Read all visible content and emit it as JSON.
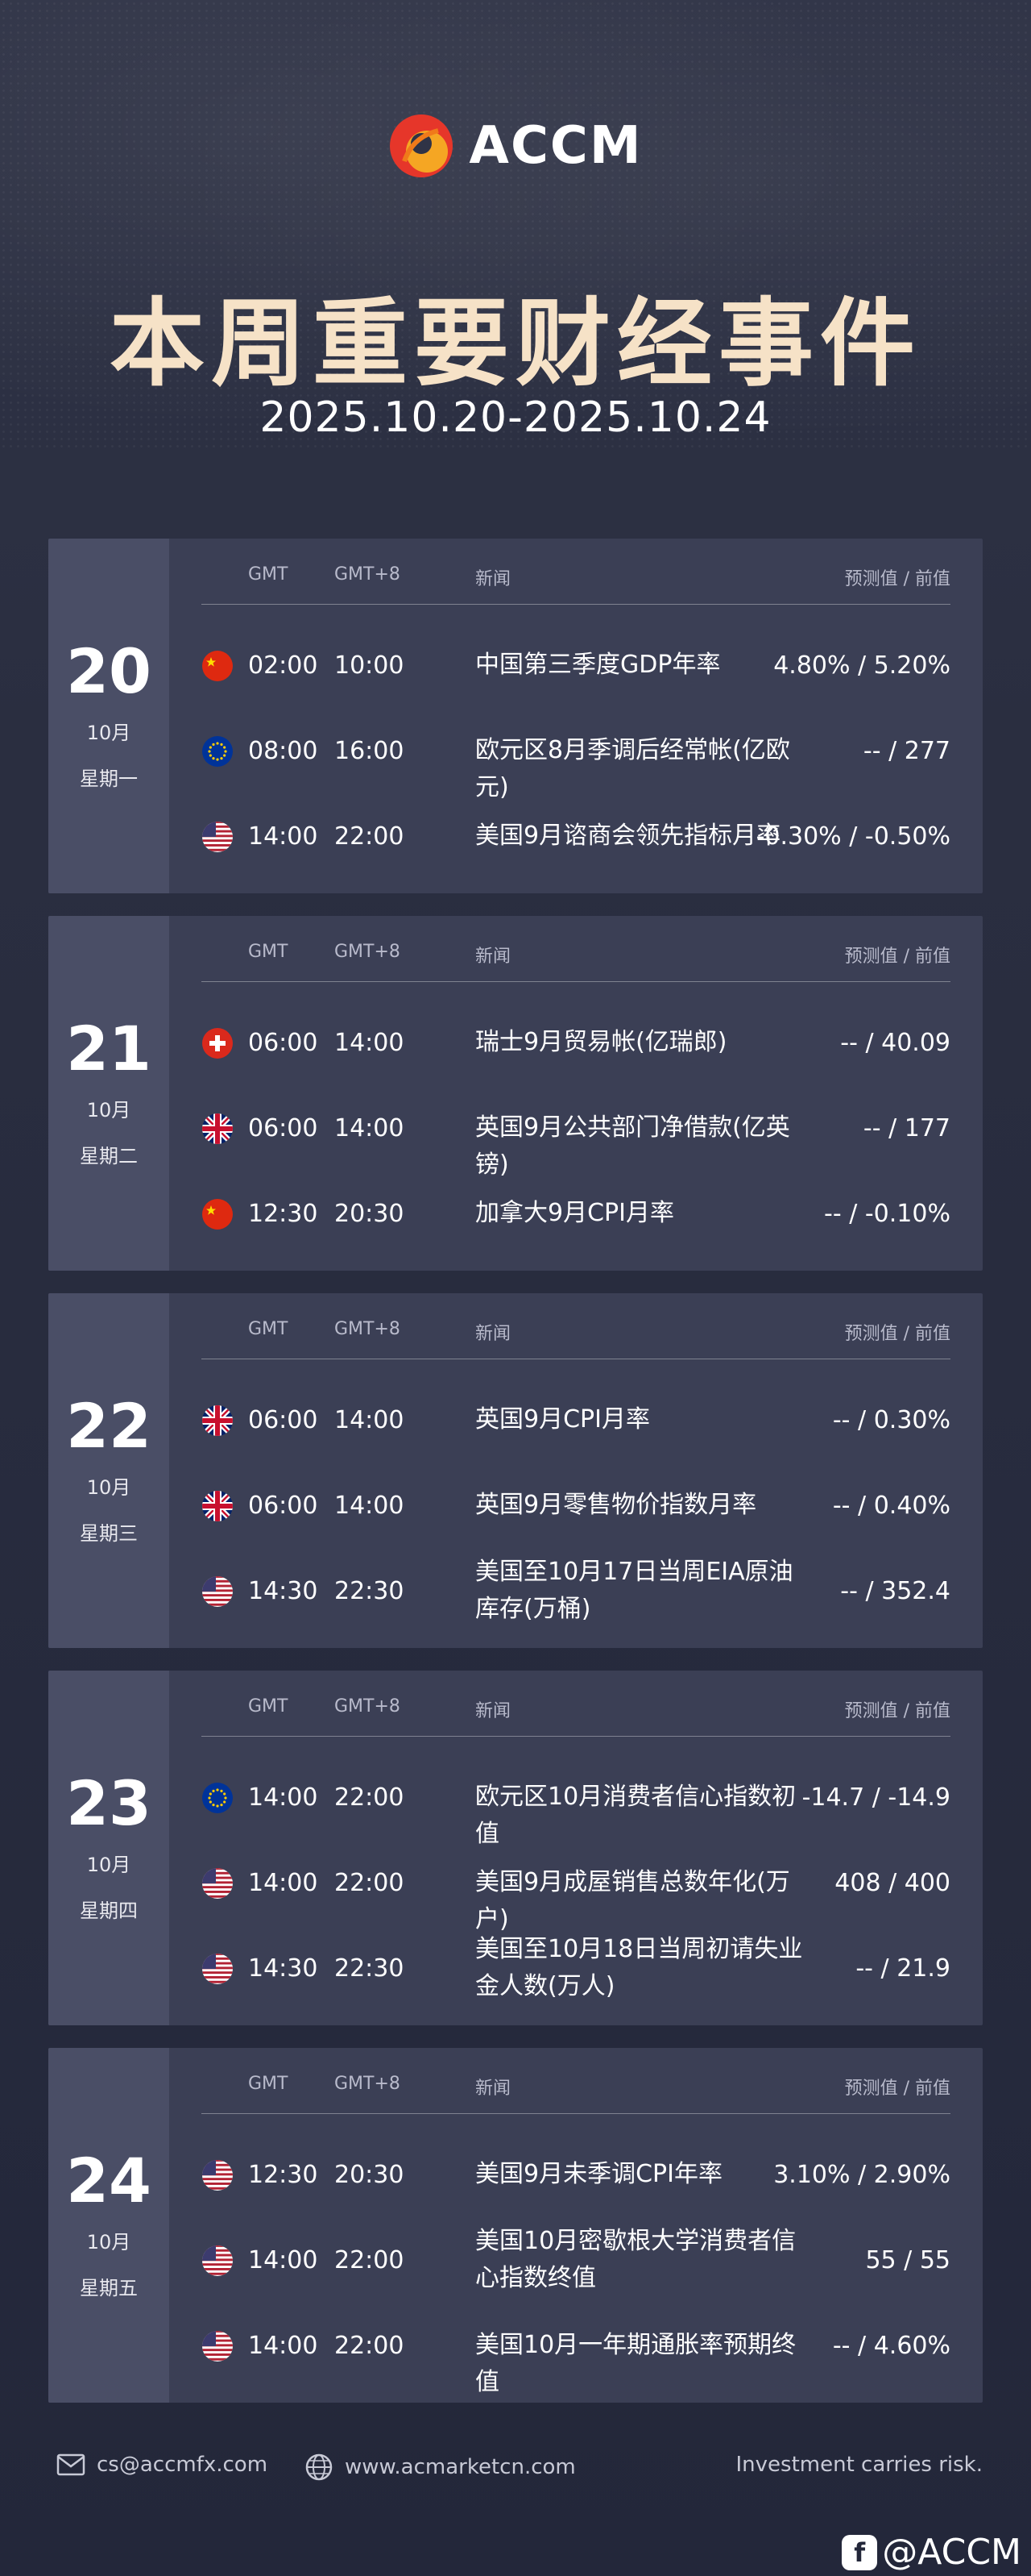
{
  "brand": {
    "name": "ACCM"
  },
  "title": "本周重要财经事件",
  "date_range": "2025.10.20-2025.10.24",
  "table_headers": {
    "gmt": "GMT",
    "gmt8": "GMT+8",
    "news": "新闻",
    "value": "预测值 / 前值"
  },
  "days": [
    {
      "day": "20",
      "month": "10月",
      "weekday": "星期一",
      "events": [
        {
          "flag": "cn-flag-icon",
          "gmt": "02:00",
          "gmt8": "10:00",
          "news": "中国第三季度GDP年率",
          "value": "4.80% / 5.20%"
        },
        {
          "flag": "eu-flag-icon",
          "gmt": "08:00",
          "gmt8": "16:00",
          "news": "欧元区8月季调后经常帐(亿欧元)",
          "value": "-- / 277"
        },
        {
          "flag": "us-flag-icon",
          "gmt": "14:00",
          "gmt8": "22:00",
          "news": "美国9月谘商会领先指标月率",
          "value": "-0.30% / -0.50%"
        }
      ]
    },
    {
      "day": "21",
      "month": "10月",
      "weekday": "星期二",
      "events": [
        {
          "flag": "ch-flag-icon",
          "gmt": "06:00",
          "gmt8": "14:00",
          "news": "瑞士9月贸易帐(亿瑞郎)",
          "value": "-- / 40.09"
        },
        {
          "flag": "uk-flag-icon",
          "gmt": "06:00",
          "gmt8": "14:00",
          "news": "英国9月公共部门净借款(亿英镑)",
          "value": "-- / 177"
        },
        {
          "flag": "ca-flag-icon",
          "gmt": "12:30",
          "gmt8": "20:30",
          "news": "加拿大9月CPI月率",
          "value": "-- / -0.10%"
        }
      ]
    },
    {
      "day": "22",
      "month": "10月",
      "weekday": "星期三",
      "events": [
        {
          "flag": "uk-flag-icon",
          "gmt": "06:00",
          "gmt8": "14:00",
          "news": "英国9月CPI月率",
          "value": "-- / 0.30%"
        },
        {
          "flag": "uk-flag-icon",
          "gmt": "06:00",
          "gmt8": "14:00",
          "news": "英国9月零售物价指数月率",
          "value": "-- / 0.40%"
        },
        {
          "flag": "us-flag-icon",
          "gmt": "14:30",
          "gmt8": "22:30",
          "news": "美国至10月17日当周EIA原油库存(万桶)",
          "value": "-- / 352.4"
        }
      ]
    },
    {
      "day": "23",
      "month": "10月",
      "weekday": "星期四",
      "events": [
        {
          "flag": "eu-flag-icon",
          "gmt": "14:00",
          "gmt8": "22:00",
          "news": "欧元区10月消费者信心指数初值",
          "value": "-14.7 / -14.9"
        },
        {
          "flag": "us-flag-icon",
          "gmt": "14:00",
          "gmt8": "22:00",
          "news": "美国9月成屋销售总数年化(万户)",
          "value": "408 / 400"
        },
        {
          "flag": "us-flag-icon",
          "gmt": "14:30",
          "gmt8": "22:30",
          "news": "美国至10月18日当周初请失业金人数(万人)",
          "value": "-- / 21.9"
        }
      ]
    },
    {
      "day": "24",
      "month": "10月",
      "weekday": "星期五",
      "events": [
        {
          "flag": "us-flag-icon",
          "gmt": "12:30",
          "gmt8": "20:30",
          "news": "美国9月未季调CPI年率",
          "value": "3.10% / 2.90%"
        },
        {
          "flag": "us-flag-icon",
          "gmt": "14:00",
          "gmt8": "22:00",
          "news": "美国10月密歇根大学消费者信心指数终值",
          "value": "55 / 55"
        },
        {
          "flag": "us-flag-icon",
          "gmt": "14:00",
          "gmt8": "22:00",
          "news": "美国10月一年期通胀率预期终值",
          "value": "-- / 4.60%"
        }
      ]
    }
  ],
  "footer": {
    "email": "cs@accmfx.com",
    "website": "www.acmarketcn.com",
    "disclaimer": "Investment carries risk."
  },
  "watermark": "@ACCM",
  "colors": {
    "title": "#f6e2c7",
    "card": "#3b3f55",
    "card_side": "#4a4e66",
    "logo_orange": "#f07a1a",
    "logo_red": "#e6362a"
  }
}
